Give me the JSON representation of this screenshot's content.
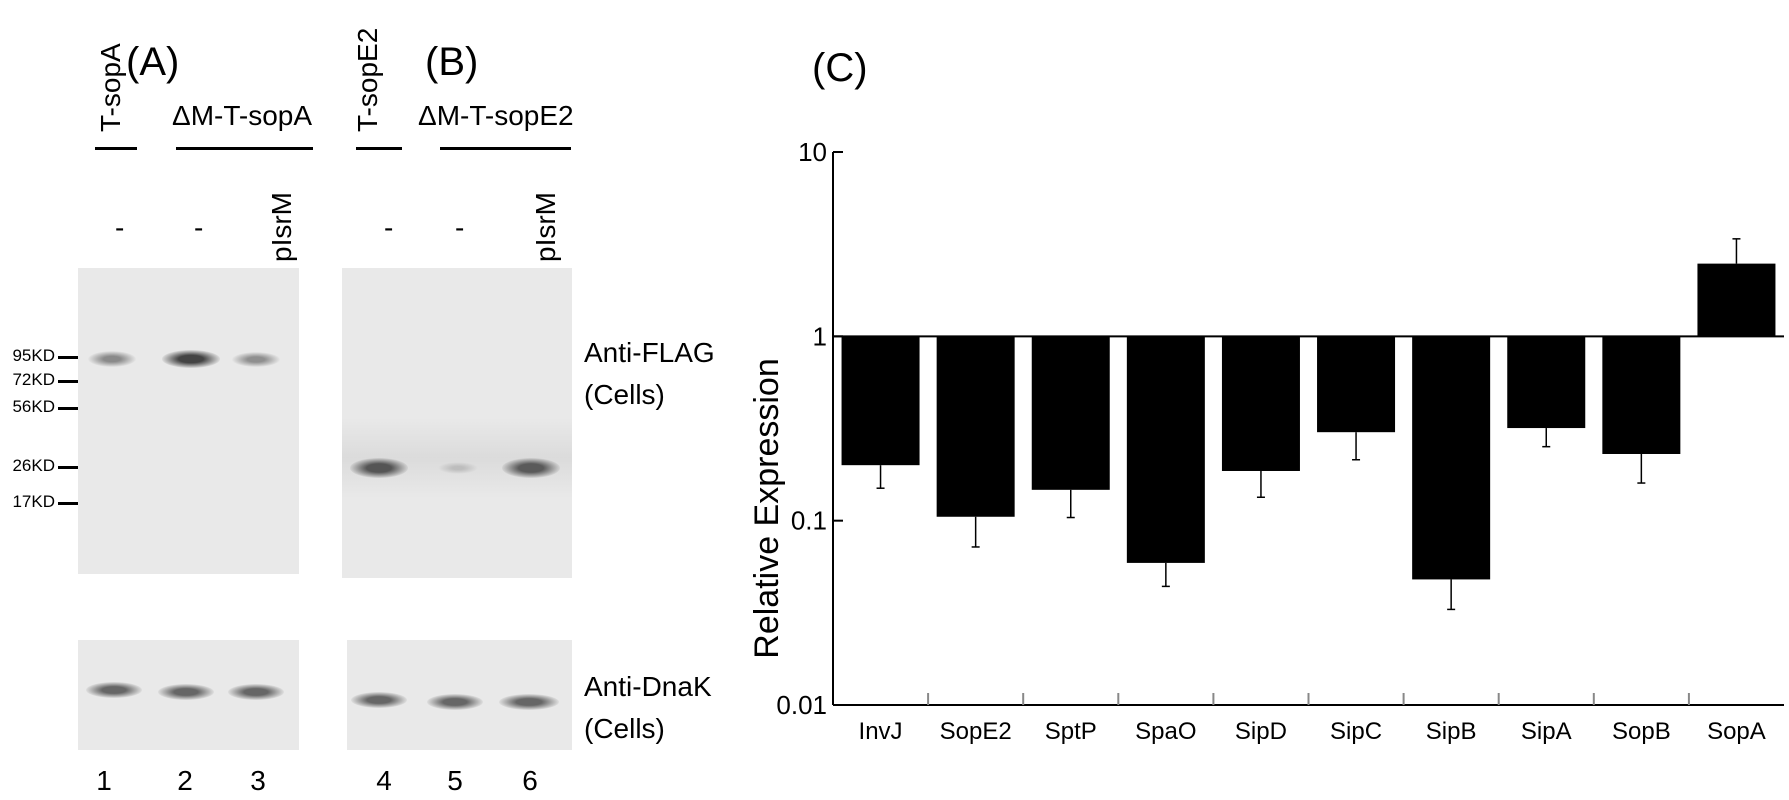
{
  "panels": {
    "a_label": "(A)",
    "b_label": "(B)",
    "c_label": "(C)"
  },
  "blots": {
    "t_sopa": "T-sopA",
    "dm_t_sopa": "ΔM-T-sopA",
    "t_sope2": "T-sopE2",
    "dm_t_sope2": "ΔM-T-sopE2",
    "lane_treatments": [
      "-",
      "-",
      "pIsrM",
      "-",
      "-",
      "pIsrM"
    ],
    "lanes": [
      "1",
      "2",
      "3",
      "4",
      "5",
      "6"
    ],
    "markers": [
      "95KD",
      "72KD",
      "56KD",
      "26KD",
      "17KD"
    ],
    "anti_flag": "Anti-FLAG",
    "anti_dnak": "Anti-DnaK",
    "cells": "(Cells)"
  },
  "chart_data": {
    "type": "bar",
    "title": "",
    "xlabel": "",
    "ylabel": "Relative Expression",
    "yscale": "log",
    "ylim": [
      0.01,
      10
    ],
    "yticks": [
      "10",
      "1",
      "0.1",
      "0.01"
    ],
    "baseline": 1,
    "categories": [
      "InvJ",
      "SopE2",
      "SptP",
      "SpaO",
      "SipD",
      "SipC",
      "SipB",
      "SipA",
      "SopB",
      "SopA"
    ],
    "values": [
      0.2,
      0.105,
      0.147,
      0.059,
      0.186,
      0.302,
      0.048,
      0.318,
      0.23,
      2.48
    ],
    "error": [
      0.05,
      0.033,
      0.043,
      0.015,
      0.052,
      0.088,
      0.015,
      0.066,
      0.07,
      0.9
    ],
    "bar_color": "#000000"
  }
}
